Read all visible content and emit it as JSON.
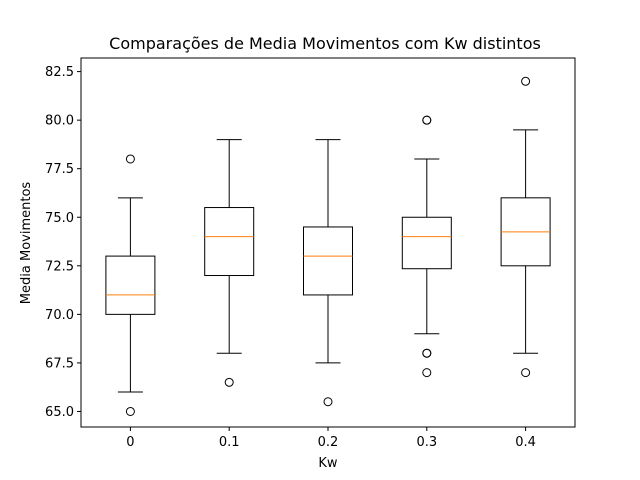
{
  "chart_data": {
    "type": "box",
    "title": "Comparações de Media Movimentos com Kw distintos",
    "xlabel": "Kw",
    "ylabel": "Media Movimentos",
    "ylim": [
      64.2,
      83.2
    ],
    "yticks": [
      "65.0",
      "67.5",
      "70.0",
      "72.5",
      "75.0",
      "77.5",
      "80.0",
      "82.5"
    ],
    "categories": [
      "0",
      "0.1",
      "0.2",
      "0.3",
      "0.4"
    ],
    "boxes": [
      {
        "category": "0",
        "whisker_low": 66.0,
        "q1": 70.0,
        "median": 71.0,
        "q3": 73.0,
        "whisker_high": 76.0,
        "outliers": [
          78.0,
          65.0
        ]
      },
      {
        "category": "0.1",
        "whisker_low": 68.0,
        "q1": 72.0,
        "median": 74.0,
        "q3": 75.5,
        "whisker_high": 79.0,
        "outliers": [
          66.5
        ]
      },
      {
        "category": "0.2",
        "whisker_low": 67.5,
        "q1": 71.0,
        "median": 73.0,
        "q3": 74.5,
        "whisker_high": 79.0,
        "outliers": [
          65.5
        ]
      },
      {
        "category": "0.3",
        "whisker_low": 69.0,
        "q1": 72.35,
        "median": 74.0,
        "q3": 75.0,
        "whisker_high": 78.0,
        "outliers": [
          80.0,
          80.0,
          68.0,
          68.0,
          67.0
        ]
      },
      {
        "category": "0.4",
        "whisker_low": 68.0,
        "q1": 72.5,
        "median": 74.25,
        "q3": 76.0,
        "whisker_high": 79.5,
        "outliers": [
          82.0,
          67.0
        ]
      }
    ],
    "colors": {
      "box": "#000000",
      "median": "#ff7f0e",
      "outlier": "#000000"
    },
    "grid": false,
    "legend": "none"
  }
}
